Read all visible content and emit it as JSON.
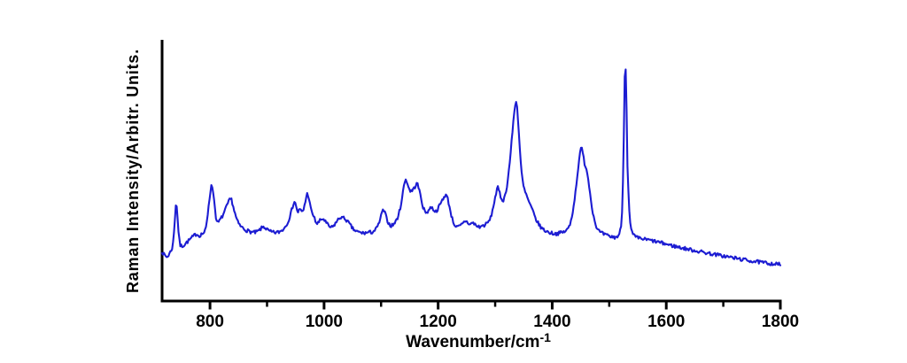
{
  "figure": {
    "background": "#ffffff",
    "y_axis_label": "Raman Intensity/Arbitr. Units.",
    "x_axis_label_base": "Wavenumber/cm",
    "x_axis_label_sup": "-1"
  },
  "chart_data": {
    "type": "line",
    "title": "",
    "xlabel": "Wavenumber/cm^-1",
    "ylabel": "Raman Intensity/Arbitr. Units.",
    "x_range": [
      716,
      1800
    ],
    "x_major_ticks": [
      800,
      1000,
      1200,
      1400,
      1600,
      1800
    ],
    "x_minor_ticks": [
      900,
      1100,
      1300,
      1500,
      1700
    ],
    "y_axis_ticks": "none (arbitrary units)",
    "grid": false,
    "legend": false,
    "line_color": "#1c1cd2",
    "axis_color": "#000000",
    "main_peaks_cm1": [
      741,
      805,
      837,
      949,
      971,
      1104,
      1143,
      1164,
      1214,
      1305,
      1337,
      1451,
      1528
    ],
    "noise": {
      "seed": 7,
      "amplitude": 0.007,
      "step_cm1": 1.6
    },
    "points": [
      [
        716,
        0.19
      ],
      [
        719,
        0.178
      ],
      [
        722,
        0.172
      ],
      [
        725,
        0.168
      ],
      [
        728,
        0.178
      ],
      [
        731,
        0.19
      ],
      [
        734,
        0.205
      ],
      [
        736,
        0.235
      ],
      [
        738,
        0.3
      ],
      [
        740,
        0.368
      ],
      [
        741,
        0.38
      ],
      [
        742,
        0.355
      ],
      [
        744,
        0.29
      ],
      [
        746,
        0.235
      ],
      [
        748,
        0.213
      ],
      [
        751,
        0.21
      ],
      [
        754,
        0.214
      ],
      [
        758,
        0.222
      ],
      [
        763,
        0.232
      ],
      [
        768,
        0.242
      ],
      [
        773,
        0.252
      ],
      [
        777,
        0.258
      ],
      [
        780,
        0.25
      ],
      [
        783,
        0.252
      ],
      [
        786,
        0.258
      ],
      [
        789,
        0.26
      ],
      [
        792,
        0.27
      ],
      [
        795,
        0.31
      ],
      [
        798,
        0.375
      ],
      [
        801,
        0.425
      ],
      [
        803,
        0.444
      ],
      [
        805,
        0.43
      ],
      [
        807,
        0.39
      ],
      [
        809,
        0.35
      ],
      [
        811,
        0.31
      ],
      [
        813,
        0.298
      ],
      [
        816,
        0.305
      ],
      [
        819,
        0.315
      ],
      [
        823,
        0.33
      ],
      [
        827,
        0.35
      ],
      [
        831,
        0.372
      ],
      [
        834,
        0.385
      ],
      [
        837,
        0.393
      ],
      [
        839,
        0.378
      ],
      [
        842,
        0.35
      ],
      [
        845,
        0.325
      ],
      [
        848,
        0.305
      ],
      [
        852,
        0.29
      ],
      [
        856,
        0.282
      ],
      [
        861,
        0.274
      ],
      [
        867,
        0.268
      ],
      [
        873,
        0.264
      ],
      [
        879,
        0.262
      ],
      [
        885,
        0.268
      ],
      [
        890,
        0.278
      ],
      [
        894,
        0.285
      ],
      [
        898,
        0.278
      ],
      [
        903,
        0.268
      ],
      [
        909,
        0.263
      ],
      [
        915,
        0.262
      ],
      [
        921,
        0.264
      ],
      [
        927,
        0.272
      ],
      [
        932,
        0.285
      ],
      [
        937,
        0.305
      ],
      [
        941,
        0.33
      ],
      [
        944,
        0.355
      ],
      [
        947,
        0.378
      ],
      [
        949,
        0.383
      ],
      [
        951,
        0.36
      ],
      [
        954,
        0.34
      ],
      [
        957,
        0.35
      ],
      [
        960,
        0.345
      ],
      [
        963,
        0.34
      ],
      [
        966,
        0.37
      ],
      [
        969,
        0.4
      ],
      [
        971,
        0.414
      ],
      [
        973,
        0.4
      ],
      [
        976,
        0.36
      ],
      [
        979,
        0.335
      ],
      [
        981,
        0.33
      ],
      [
        984,
        0.31
      ],
      [
        988,
        0.295
      ],
      [
        993,
        0.308
      ],
      [
        997,
        0.315
      ],
      [
        1000,
        0.312
      ],
      [
        1004,
        0.298
      ],
      [
        1008,
        0.288
      ],
      [
        1012,
        0.28
      ],
      [
        1016,
        0.285
      ],
      [
        1020,
        0.298
      ],
      [
        1025,
        0.312
      ],
      [
        1029,
        0.322
      ],
      [
        1033,
        0.318
      ],
      [
        1037,
        0.315
      ],
      [
        1041,
        0.305
      ],
      [
        1046,
        0.29
      ],
      [
        1051,
        0.275
      ],
      [
        1057,
        0.266
      ],
      [
        1063,
        0.262
      ],
      [
        1070,
        0.26
      ],
      [
        1077,
        0.262
      ],
      [
        1084,
        0.264
      ],
      [
        1090,
        0.272
      ],
      [
        1095,
        0.29
      ],
      [
        1099,
        0.318
      ],
      [
        1102,
        0.342
      ],
      [
        1104,
        0.349
      ],
      [
        1107,
        0.335
      ],
      [
        1110,
        0.315
      ],
      [
        1113,
        0.298
      ],
      [
        1117,
        0.288
      ],
      [
        1121,
        0.292
      ],
      [
        1126,
        0.305
      ],
      [
        1130,
        0.325
      ],
      [
        1134,
        0.36
      ],
      [
        1137,
        0.4
      ],
      [
        1140,
        0.44
      ],
      [
        1142,
        0.462
      ],
      [
        1144,
        0.468
      ],
      [
        1146,
        0.45
      ],
      [
        1149,
        0.43
      ],
      [
        1152,
        0.42
      ],
      [
        1155,
        0.424
      ],
      [
        1158,
        0.432
      ],
      [
        1161,
        0.445
      ],
      [
        1163,
        0.451
      ],
      [
        1165,
        0.44
      ],
      [
        1168,
        0.415
      ],
      [
        1171,
        0.385
      ],
      [
        1174,
        0.355
      ],
      [
        1177,
        0.342
      ],
      [
        1180,
        0.339
      ],
      [
        1184,
        0.35
      ],
      [
        1188,
        0.36
      ],
      [
        1192,
        0.35
      ],
      [
        1196,
        0.342
      ],
      [
        1200,
        0.355
      ],
      [
        1204,
        0.372
      ],
      [
        1208,
        0.39
      ],
      [
        1212,
        0.404
      ],
      [
        1214,
        0.407
      ],
      [
        1217,
        0.39
      ],
      [
        1220,
        0.36
      ],
      [
        1223,
        0.33
      ],
      [
        1226,
        0.305
      ],
      [
        1230,
        0.288
      ],
      [
        1234,
        0.282
      ],
      [
        1239,
        0.288
      ],
      [
        1244,
        0.298
      ],
      [
        1248,
        0.308
      ],
      [
        1252,
        0.3
      ],
      [
        1256,
        0.292
      ],
      [
        1260,
        0.3
      ],
      [
        1264,
        0.295
      ],
      [
        1268,
        0.286
      ],
      [
        1273,
        0.284
      ],
      [
        1278,
        0.288
      ],
      [
        1283,
        0.292
      ],
      [
        1288,
        0.302
      ],
      [
        1292,
        0.318
      ],
      [
        1296,
        0.352
      ],
      [
        1300,
        0.398
      ],
      [
        1303,
        0.425
      ],
      [
        1305,
        0.434
      ],
      [
        1308,
        0.412
      ],
      [
        1311,
        0.39
      ],
      [
        1314,
        0.385
      ],
      [
        1317,
        0.4
      ],
      [
        1320,
        0.43
      ],
      [
        1323,
        0.48
      ],
      [
        1326,
        0.54
      ],
      [
        1329,
        0.615
      ],
      [
        1332,
        0.69
      ],
      [
        1335,
        0.75
      ],
      [
        1337,
        0.77
      ],
      [
        1339,
        0.73
      ],
      [
        1341,
        0.665
      ],
      [
        1343,
        0.59
      ],
      [
        1345,
        0.525
      ],
      [
        1347,
        0.475
      ],
      [
        1350,
        0.435
      ],
      [
        1353,
        0.415
      ],
      [
        1356,
        0.398
      ],
      [
        1359,
        0.38
      ],
      [
        1363,
        0.36
      ],
      [
        1367,
        0.338
      ],
      [
        1371,
        0.315
      ],
      [
        1376,
        0.295
      ],
      [
        1381,
        0.28
      ],
      [
        1387,
        0.27
      ],
      [
        1393,
        0.264
      ],
      [
        1399,
        0.26
      ],
      [
        1406,
        0.258
      ],
      [
        1413,
        0.26
      ],
      [
        1420,
        0.264
      ],
      [
        1426,
        0.272
      ],
      [
        1431,
        0.29
      ],
      [
        1435,
        0.33
      ],
      [
        1438,
        0.37
      ],
      [
        1441,
        0.42
      ],
      [
        1444,
        0.48
      ],
      [
        1447,
        0.54
      ],
      [
        1450,
        0.58
      ],
      [
        1452,
        0.586
      ],
      [
        1454,
        0.56
      ],
      [
        1457,
        0.525
      ],
      [
        1460,
        0.508
      ],
      [
        1463,
        0.47
      ],
      [
        1466,
        0.42
      ],
      [
        1469,
        0.37
      ],
      [
        1472,
        0.33
      ],
      [
        1476,
        0.295
      ],
      [
        1480,
        0.272
      ],
      [
        1485,
        0.262
      ],
      [
        1491,
        0.255
      ],
      [
        1497,
        0.25
      ],
      [
        1503,
        0.246
      ],
      [
        1509,
        0.244
      ],
      [
        1514,
        0.246
      ],
      [
        1518,
        0.256
      ],
      [
        1521,
        0.29
      ],
      [
        1523,
        0.37
      ],
      [
        1525,
        0.54
      ],
      [
        1526,
        0.7
      ],
      [
        1527,
        0.85
      ],
      [
        1528,
        0.925
      ],
      [
        1529,
        0.885
      ],
      [
        1530,
        0.79
      ],
      [
        1531,
        0.65
      ],
      [
        1532,
        0.52
      ],
      [
        1534,
        0.39
      ],
      [
        1536,
        0.31
      ],
      [
        1538,
        0.275
      ],
      [
        1541,
        0.258
      ],
      [
        1544,
        0.248
      ],
      [
        1548,
        0.243
      ],
      [
        1553,
        0.24
      ],
      [
        1560,
        0.237
      ],
      [
        1568,
        0.234
      ],
      [
        1577,
        0.23
      ],
      [
        1587,
        0.225
      ],
      [
        1598,
        0.219
      ],
      [
        1610,
        0.212
      ],
      [
        1622,
        0.206
      ],
      [
        1635,
        0.2
      ],
      [
        1648,
        0.194
      ],
      [
        1662,
        0.188
      ],
      [
        1676,
        0.182
      ],
      [
        1691,
        0.176
      ],
      [
        1706,
        0.17
      ],
      [
        1721,
        0.164
      ],
      [
        1736,
        0.158
      ],
      [
        1751,
        0.153
      ],
      [
        1766,
        0.148
      ],
      [
        1781,
        0.144
      ],
      [
        1800,
        0.14
      ]
    ]
  }
}
